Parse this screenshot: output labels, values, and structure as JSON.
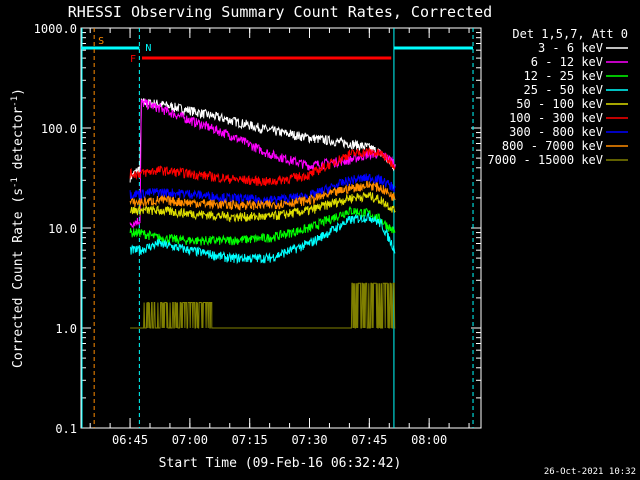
{
  "chart_data": {
    "type": "line",
    "title": "RHESSI Observing Summary Count Rates, Corrected",
    "xlabel": "Start Time (09-Feb-16 06:32:42)",
    "ylabel_main": "Corrected Count Rate (s",
    "ylabel_exp1": "-1",
    "ylabel_mid": " detector",
    "ylabel_exp2": "-1",
    "ylabel_end": ")",
    "yscale": "log",
    "ylim": [
      0.1,
      1000
    ],
    "xlim": [
      "06:32:42",
      "08:13:00"
    ],
    "x_ticks": [
      "06:45",
      "07:00",
      "07:15",
      "07:30",
      "07:45",
      "08:00"
    ],
    "y_ticks": [
      "0.1",
      "1.0",
      "10.0",
      "100.0",
      "1000.0"
    ],
    "legend": {
      "title": "Det 1,5,7, Att 0",
      "placement": "right"
    },
    "series": [
      {
        "name": "3 - 6 keV",
        "color": "#ffffff",
        "points": [
          [
            "06:45:00",
            32
          ],
          [
            "06:47:30",
            40
          ],
          [
            "06:47:50",
            180
          ],
          [
            "06:52:00",
            175
          ],
          [
            "07:00:00",
            150
          ],
          [
            "07:10:00",
            120
          ],
          [
            "07:20:00",
            95
          ],
          [
            "07:30:00",
            80
          ],
          [
            "07:40:00",
            70
          ],
          [
            "07:45:00",
            64
          ],
          [
            "07:48:00",
            55
          ],
          [
            "07:51:30",
            40
          ]
        ]
      },
      {
        "name": "6 - 12 keV",
        "color": "#ff00ff",
        "points": [
          [
            "06:45:00",
            11
          ],
          [
            "06:47:30",
            12
          ],
          [
            "06:47:50",
            180
          ],
          [
            "06:52:00",
            160
          ],
          [
            "07:00:00",
            120
          ],
          [
            "07:10:00",
            85
          ],
          [
            "07:20:00",
            55
          ],
          [
            "07:30:00",
            42
          ],
          [
            "07:40:00",
            48
          ],
          [
            "07:45:00",
            55
          ],
          [
            "07:48:00",
            55
          ],
          [
            "07:51:30",
            45
          ]
        ]
      },
      {
        "name": "12 - 25 keV",
        "color": "#00ff00",
        "points": [
          [
            "06:45:00",
            9
          ],
          [
            "06:47:30",
            9
          ],
          [
            "06:52:00",
            8
          ],
          [
            "07:00:00",
            7.5
          ],
          [
            "07:10:00",
            7.5
          ],
          [
            "07:20:00",
            8
          ],
          [
            "07:30:00",
            10
          ],
          [
            "07:40:00",
            15
          ],
          [
            "07:45:00",
            14
          ],
          [
            "07:48:00",
            12
          ],
          [
            "07:51:30",
            9
          ]
        ]
      },
      {
        "name": "25 - 50 keV",
        "color": "#00ffff",
        "points": [
          [
            "06:45:00",
            6
          ],
          [
            "06:47:30",
            6
          ],
          [
            "06:52:00",
            7
          ],
          [
            "07:00:00",
            6
          ],
          [
            "07:10:00",
            5
          ],
          [
            "07:20:00",
            5
          ],
          [
            "07:30:00",
            7
          ],
          [
            "07:40:00",
            12
          ],
          [
            "07:45:00",
            13
          ],
          [
            "07:48:00",
            11
          ],
          [
            "07:51:30",
            6
          ]
        ]
      },
      {
        "name": "50 - 100 keV",
        "color": "#dddd00",
        "points": [
          [
            "06:45:00",
            15
          ],
          [
            "06:47:30",
            15
          ],
          [
            "06:52:00",
            15
          ],
          [
            "07:00:00",
            14
          ],
          [
            "07:10:00",
            13
          ],
          [
            "07:20:00",
            13
          ],
          [
            "07:30:00",
            15
          ],
          [
            "07:40:00",
            20
          ],
          [
            "07:45:00",
            21
          ],
          [
            "07:48:00",
            19
          ],
          [
            "07:51:30",
            15
          ]
        ]
      },
      {
        "name": "100 - 300 keV",
        "color": "#ff0000",
        "points": [
          [
            "06:45:00",
            35
          ],
          [
            "06:47:30",
            35
          ],
          [
            "06:52:00",
            38
          ],
          [
            "07:00:00",
            35
          ],
          [
            "07:10:00",
            31
          ],
          [
            "07:20:00",
            29
          ],
          [
            "07:30:00",
            34
          ],
          [
            "07:40:00",
            55
          ],
          [
            "07:45:00",
            58
          ],
          [
            "07:48:00",
            55
          ],
          [
            "07:51:30",
            42
          ]
        ]
      },
      {
        "name": "300 - 800 keV",
        "color": "#0000ff",
        "points": [
          [
            "06:45:00",
            22
          ],
          [
            "06:47:30",
            22
          ],
          [
            "06:52:00",
            23
          ],
          [
            "07:00:00",
            22
          ],
          [
            "07:10:00",
            20
          ],
          [
            "07:20:00",
            19
          ],
          [
            "07:30:00",
            21
          ],
          [
            "07:40:00",
            30
          ],
          [
            "07:45:00",
            32
          ],
          [
            "07:48:00",
            30
          ],
          [
            "07:51:30",
            25
          ]
        ]
      },
      {
        "name": "800 - 7000 keV",
        "color": "#ff8c00",
        "points": [
          [
            "06:45:00",
            18
          ],
          [
            "06:47:30",
            18
          ],
          [
            "06:52:00",
            19
          ],
          [
            "07:00:00",
            18
          ],
          [
            "07:10:00",
            17
          ],
          [
            "07:20:00",
            17
          ],
          [
            "07:30:00",
            19
          ],
          [
            "07:40:00",
            25
          ],
          [
            "07:45:00",
            27
          ],
          [
            "07:48:00",
            25
          ],
          [
            "07:51:30",
            20
          ]
        ]
      },
      {
        "name": "7000 - 15000 keV",
        "color": "#808000",
        "points": [
          [
            "06:45:00",
            1
          ],
          [
            "06:47:30",
            1
          ],
          [
            "06:48:00",
            1.8
          ],
          [
            "07:05:00",
            1.8
          ],
          [
            "07:05:30",
            1
          ],
          [
            "07:40:00",
            1
          ],
          [
            "07:40:30",
            2.8
          ],
          [
            "07:51:30",
            2.5
          ]
        ]
      }
    ],
    "annotations": [
      {
        "label": "S",
        "color": "#ff8c00"
      },
      {
        "label": "N",
        "color": "#00ffff"
      },
      {
        "label": "F",
        "color": "#ff0000"
      }
    ],
    "bars": {
      "night": [
        [
          "06:32:42",
          "06:47:20"
        ],
        [
          "07:51:10",
          "08:11:00"
        ]
      ],
      "flare": [
        [
          "06:48:00",
          "07:50:30"
        ]
      ]
    },
    "markers": {
      "saa_start": "06:36:00",
      "night_start_cyan": [
        "06:47:20",
        "07:51:10",
        "08:11:00"
      ],
      "saa_cyan": "06:32:42"
    },
    "timestamp": "26-Oct-2021 10:32"
  }
}
